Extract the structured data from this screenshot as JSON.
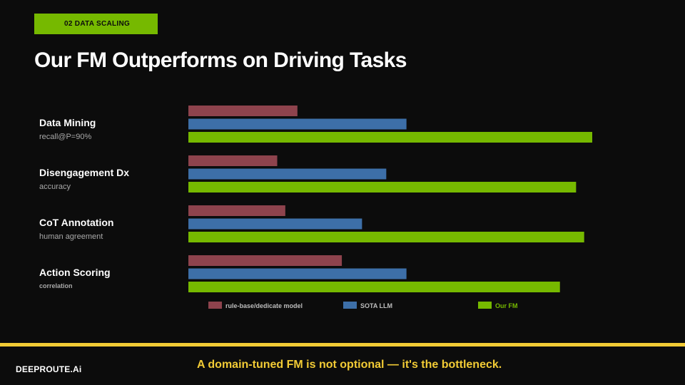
{
  "header": {
    "section_tag": "02 DATA SCALING",
    "title": "Our FM Outperforms on Driving Tasks"
  },
  "colors": {
    "rule_base": "#8e434d",
    "sota_llm": "#3d6fa8",
    "our_fm": "#76b900",
    "accent_yellow": "#f2cb35",
    "background": "#0c0c0c"
  },
  "chart_data": {
    "type": "bar",
    "orientation": "horizontal",
    "title": "Our FM Outperforms on Driving Tasks",
    "xlabel": "",
    "ylabel": "",
    "grid": false,
    "legend_position": "bottom",
    "xlim": [
      0,
      100
    ],
    "categories": [
      {
        "name": "Data Mining",
        "metric": "recall@P=90%"
      },
      {
        "name": "Disengagement Dx",
        "metric": "accuracy"
      },
      {
        "name": "CoT Annotation",
        "metric": "human agreement"
      },
      {
        "name": "Action Scoring",
        "metric": "correlation"
      }
    ],
    "series": [
      {
        "name": "rule-base/dedicate model",
        "color": "#8e434d",
        "values": [
          27,
          22,
          24,
          38
        ]
      },
      {
        "name": "SOTA LLM",
        "color": "#3d6fa8",
        "values": [
          54,
          49,
          43,
          54
        ]
      },
      {
        "name": "Our FM",
        "color": "#76b900",
        "values": [
          100,
          96,
          98,
          92
        ]
      }
    ]
  },
  "footer": {
    "brand": "DEEPROUTE.Ai",
    "tagline": "A domain-tuned FM is not optional — it's the bottleneck."
  }
}
